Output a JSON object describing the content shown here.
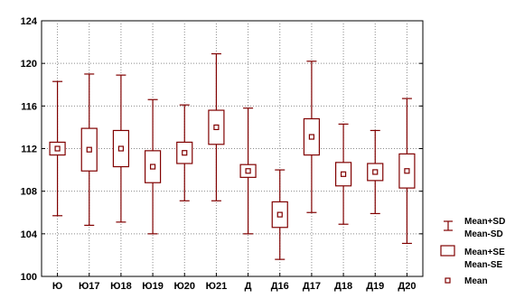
{
  "chart_data": {
    "type": "box",
    "title": "",
    "xlabel": "",
    "ylabel": "",
    "ylim": [
      100,
      124
    ],
    "yticks": [
      "100",
      "104",
      "108",
      "112",
      "116",
      "120",
      "124"
    ],
    "grid": true,
    "legend_position": "right",
    "categories": [
      "Ю",
      "Ю17",
      "Ю18",
      "Ю19",
      "Ю20",
      "Ю21",
      "Д",
      "Д16",
      "Д17",
      "Д18",
      "Д19",
      "Д20"
    ],
    "series": [
      {
        "name": "Mean",
        "values": [
          112.0,
          111.9,
          112.0,
          110.3,
          111.6,
          114.0,
          109.9,
          105.8,
          113.1,
          109.6,
          109.8,
          109.9
        ]
      },
      {
        "name": "SE",
        "values": [
          0.6,
          2.0,
          1.7,
          1.5,
          1.0,
          1.6,
          0.6,
          1.2,
          1.7,
          1.1,
          0.8,
          1.6
        ]
      },
      {
        "name": "SD",
        "values": [
          6.3,
          7.1,
          6.9,
          6.3,
          4.5,
          6.9,
          5.9,
          4.2,
          7.1,
          4.7,
          3.9,
          6.8
        ]
      }
    ],
    "legend": {
      "sd_line1": "Mean+SD",
      "sd_line2": "Mean-SD",
      "se_line1": "Mean+SE",
      "se_line2": "Mean-SE",
      "mean": "Mean"
    },
    "colors": {
      "box": "#800000",
      "grid": "#8c8c8c",
      "axis": "#000000",
      "background": "#ffffff"
    }
  }
}
